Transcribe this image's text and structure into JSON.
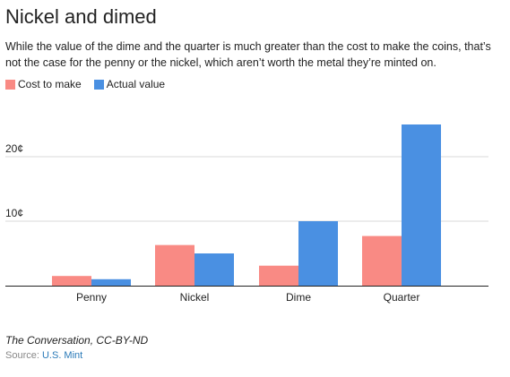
{
  "title": "Nickel and dimed",
  "subtitle": "While the value of the dime and the quarter is much greater than the cost to make the coins, that’s not the case for the penny or the nickel, which aren’t worth the metal they’re minted on.",
  "credit": "The Conversation, CC-BY-ND",
  "source": {
    "label": "Source:",
    "link_text": "U.S. Mint"
  },
  "chart_data": {
    "type": "bar",
    "title": "Nickel and dimed",
    "xlabel": "",
    "ylabel": "",
    "categories": [
      "Penny",
      "Nickel",
      "Dime",
      "Quarter"
    ],
    "series": [
      {
        "name": "Cost to make",
        "color": "#f98a84",
        "values": [
          1.5,
          6.3,
          3.1,
          7.7
        ]
      },
      {
        "name": "Actual value",
        "color": "#4a90e2",
        "values": [
          1,
          5,
          10,
          25
        ]
      }
    ],
    "yticks": [
      {
        "value": 10,
        "label": "10¢"
      },
      {
        "value": 20,
        "label": "20¢"
      }
    ],
    "ylim": [
      0,
      28
    ],
    "grid": true,
    "legend_position": "top-left"
  }
}
